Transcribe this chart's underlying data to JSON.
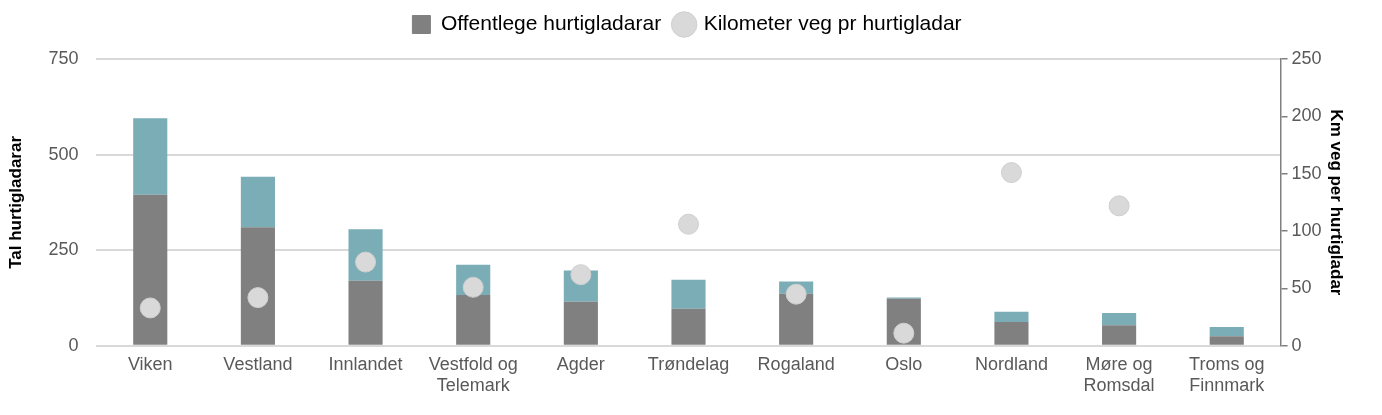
{
  "chart_data": {
    "type": "bar",
    "stacked": true,
    "categories": [
      "Viken",
      "Vestland",
      "Innlandet",
      "Vestfold og Telemark",
      "Agder",
      "Trøndelag",
      "Rogaland",
      "Oslo",
      "Nordland",
      "Møre og Romsdal",
      "Troms og Finnmark"
    ],
    "series": [
      {
        "name": "Offentlege hurtigladarar",
        "color": "#808080",
        "values": [
          395,
          310,
          170,
          133,
          115,
          97,
          136,
          123,
          62,
          54,
          25
        ]
      },
      {
        "color": "#7aadb6",
        "values": [
          200,
          132,
          135,
          79,
          82,
          76,
          32,
          3,
          27,
          32,
          24
        ]
      },
      {
        "name": "Kilometer veg pr hurtigladar",
        "type": "scatter",
        "axis": "y2",
        "color": "#d9d9d9",
        "values": [
          33,
          42,
          73,
          51,
          62,
          106,
          45,
          11,
          151,
          122,
          null
        ]
      }
    ],
    "ylabel": "Tal hurtigladarar",
    "y2label": "Km veg per hurtigladar",
    "ylim": [
      0,
      750
    ],
    "yticks": [
      0,
      250,
      500,
      750
    ],
    "y2lim": [
      0,
      250
    ],
    "y2ticks": [
      0,
      50,
      100,
      150,
      200,
      250
    ],
    "grid": "y",
    "legend": "top",
    "marker": "circle"
  }
}
